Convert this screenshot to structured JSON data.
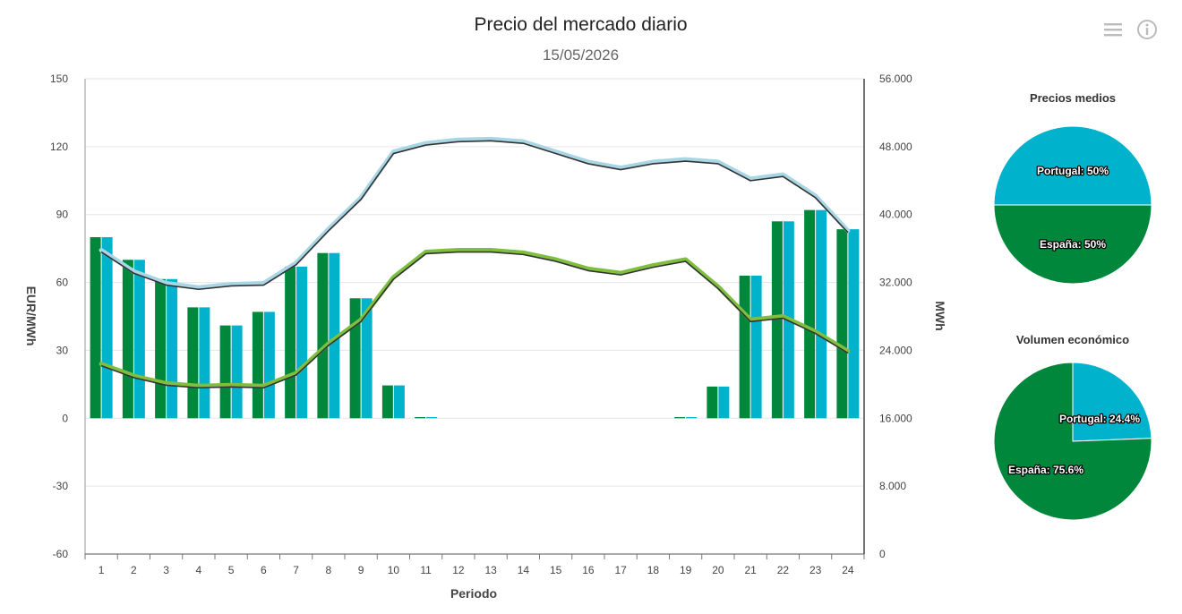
{
  "header": {
    "title": "Precio del mercado diario",
    "subtitle": "15/05/2026"
  },
  "toolbar": {
    "menu_icon": "hamburger-menu-icon",
    "info_icon": "info-icon"
  },
  "colors": {
    "spain": "#00873c",
    "portugal": "#00b2cc",
    "spain_price_line": "#7fbf3f",
    "portugal_price_line": "#a9d6e5",
    "shadow_line": "#333333"
  },
  "chart_data": [
    {
      "type": "bar",
      "xlabel": "Periodo",
      "ylabel": "EUR/MWh",
      "y2label": "MWh",
      "categories": [
        "1",
        "2",
        "3",
        "4",
        "5",
        "6",
        "7",
        "8",
        "9",
        "10",
        "11",
        "12",
        "13",
        "14",
        "15",
        "16",
        "17",
        "18",
        "19",
        "20",
        "21",
        "22",
        "23",
        "24"
      ],
      "ylim": [
        -60,
        150
      ],
      "yticks": [
        "-60",
        "-30",
        "0",
        "30",
        "60",
        "90",
        "120",
        "150"
      ],
      "y2lim": [
        0,
        56000
      ],
      "y2ticks": [
        "0",
        "8.000",
        "16.000",
        "24.000",
        "32.000",
        "40.000",
        "48.000",
        "56.000"
      ],
      "grid": true,
      "series": [
        {
          "kind": "bar",
          "axis": "left",
          "values": [
            80,
            70,
            61.5,
            49,
            41,
            47,
            67,
            73,
            53,
            14.5,
            0.5,
            0,
            0,
            0,
            0,
            0,
            0,
            0,
            0.5,
            14,
            63,
            87,
            92,
            83.5
          ]
        },
        {
          "kind": "bar",
          "axis": "left",
          "values": [
            80,
            70,
            61.5,
            49,
            41,
            47,
            67,
            73,
            53,
            14.5,
            0.5,
            0,
            0,
            0,
            0,
            0,
            0,
            0,
            0.5,
            14,
            63,
            87,
            92,
            83.5
          ]
        },
        {
          "kind": "line",
          "axis": "right",
          "values": [
            35800,
            33300,
            31900,
            31400,
            31800,
            31900,
            34300,
            38300,
            42000,
            47400,
            48400,
            48800,
            48900,
            48600,
            47400,
            46200,
            45500,
            46200,
            46500,
            46200,
            44200,
            44700,
            42200,
            38100
          ]
        },
        {
          "kind": "line",
          "axis": "right",
          "values": [
            22400,
            21000,
            20100,
            19800,
            19900,
            19800,
            21300,
            24800,
            27600,
            32600,
            35600,
            35800,
            35800,
            35500,
            34700,
            33600,
            33100,
            34000,
            34700,
            31500,
            27600,
            28000,
            26200,
            23900
          ]
        }
      ]
    },
    {
      "type": "pie",
      "title": "Precios medios",
      "slices": [
        {
          "label": "Portugal: 50%",
          "value": 50
        },
        {
          "label": "España: 50%",
          "value": 50
        }
      ]
    },
    {
      "type": "pie",
      "title": "Volumen económico",
      "slices": [
        {
          "label": "Portugal: 24.4%",
          "value": 24.4
        },
        {
          "label": "España: 75.6%",
          "value": 75.6
        }
      ]
    }
  ]
}
